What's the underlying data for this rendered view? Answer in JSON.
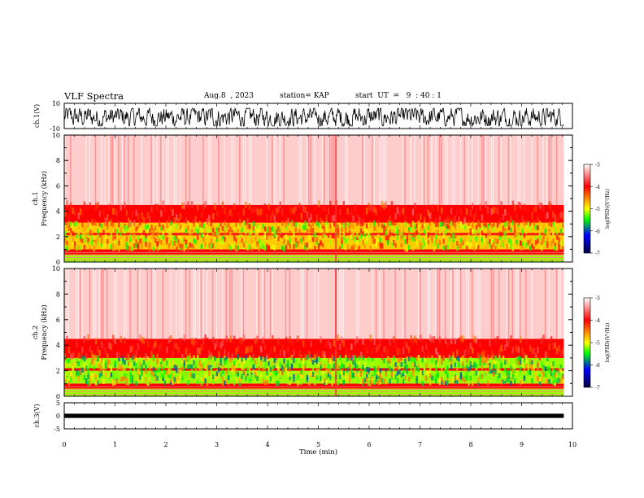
{
  "header": {
    "title": "VLF Spectra",
    "date": "Aug.8  , 2023",
    "station": "station= KAP",
    "start": "start  UT  =   9  : 40 : 1"
  },
  "chart_data": [
    {
      "type": "line",
      "panel": "ch1-waveform",
      "ylabel": "ch.1(V)",
      "ylim": [
        -10,
        10
      ],
      "y_ticks": [
        "10",
        "-10"
      ],
      "xlim": [
        0,
        10
      ],
      "x_end": 9.83,
      "description_level": "dense waveform oscillating roughly between -8 V and +6 V over the whole record",
      "series": [
        {
          "values_range": [
            -8,
            6
          ]
        }
      ]
    },
    {
      "type": "heatmap",
      "panel": "ch1-spectrogram",
      "ylabel_top": "ch.1",
      "ylabel": "Frequency  (kHz)",
      "ylim": [
        0,
        10
      ],
      "y_ticks": [
        "0",
        "2",
        "4",
        "6",
        "8",
        "10"
      ],
      "xlim": [
        0,
        10
      ],
      "x_end": 9.83,
      "colorbar": {
        "label": "log(PSD)(V²/Hz)",
        "range": [
          -7,
          -3
        ],
        "ticks": [
          "-3",
          "-4",
          "-5",
          "-6",
          "-7"
        ]
      },
      "bands": [
        {
          "from_khz": 0.0,
          "to_khz": 0.6,
          "level": -5.2
        },
        {
          "from_khz": 0.6,
          "to_khz": 1.0,
          "level": -4.0
        },
        {
          "from_khz": 1.0,
          "to_khz": 3.1,
          "level": -4.8
        },
        {
          "from_khz": 2.1,
          "to_khz": 2.3,
          "level": -3.9
        },
        {
          "from_khz": 3.1,
          "to_khz": 4.5,
          "level": -4.0
        },
        {
          "from_khz": 4.5,
          "to_khz": 10.0,
          "level": -3.2
        }
      ]
    },
    {
      "type": "heatmap",
      "panel": "ch2-spectrogram",
      "ylabel_top": "ch.2",
      "ylabel": "Frequency  (kHz)",
      "ylim": [
        0,
        10
      ],
      "y_ticks": [
        "0",
        "2",
        "4",
        "6",
        "8",
        "10"
      ],
      "xlim": [
        0,
        10
      ],
      "x_end": 9.83,
      "colorbar": {
        "label": "log(PSD)(V²/Hz)",
        "range": [
          -7,
          -3
        ],
        "ticks": [
          "-3",
          "-4",
          "-5",
          "-6",
          "-7"
        ]
      },
      "bands": [
        {
          "from_khz": 0.0,
          "to_khz": 0.6,
          "level": -5.2
        },
        {
          "from_khz": 0.6,
          "to_khz": 1.0,
          "level": -4.0
        },
        {
          "from_khz": 1.0,
          "to_khz": 3.0,
          "level": -5.2
        },
        {
          "from_khz": 2.0,
          "to_khz": 2.2,
          "level": -4.0
        },
        {
          "from_khz": 3.0,
          "to_khz": 4.5,
          "level": -4.0
        },
        {
          "from_khz": 4.5,
          "to_khz": 10.0,
          "level": -3.2
        }
      ]
    },
    {
      "type": "line",
      "panel": "ch3-waveform",
      "ylabel": "ch.3(V)",
      "ylim": [
        -5,
        5
      ],
      "y_ticks": [
        "5",
        "0",
        "-5"
      ],
      "xlim": [
        0,
        10
      ],
      "x_end": 9.83,
      "series": [
        {
          "values_range": [
            -0.5,
            0.5
          ]
        }
      ]
    }
  ],
  "x_axis": {
    "label": "Time  (min)",
    "ticks": [
      "0",
      "1",
      "2",
      "3",
      "4",
      "5",
      "6",
      "7",
      "8",
      "9",
      "10"
    ]
  },
  "colors": {
    "background_high": "#ffffff",
    "red": "#ff0000",
    "yellow": "#ffff00",
    "green": "#00ff00",
    "blue": "#0000ff",
    "trace": "#000000"
  }
}
